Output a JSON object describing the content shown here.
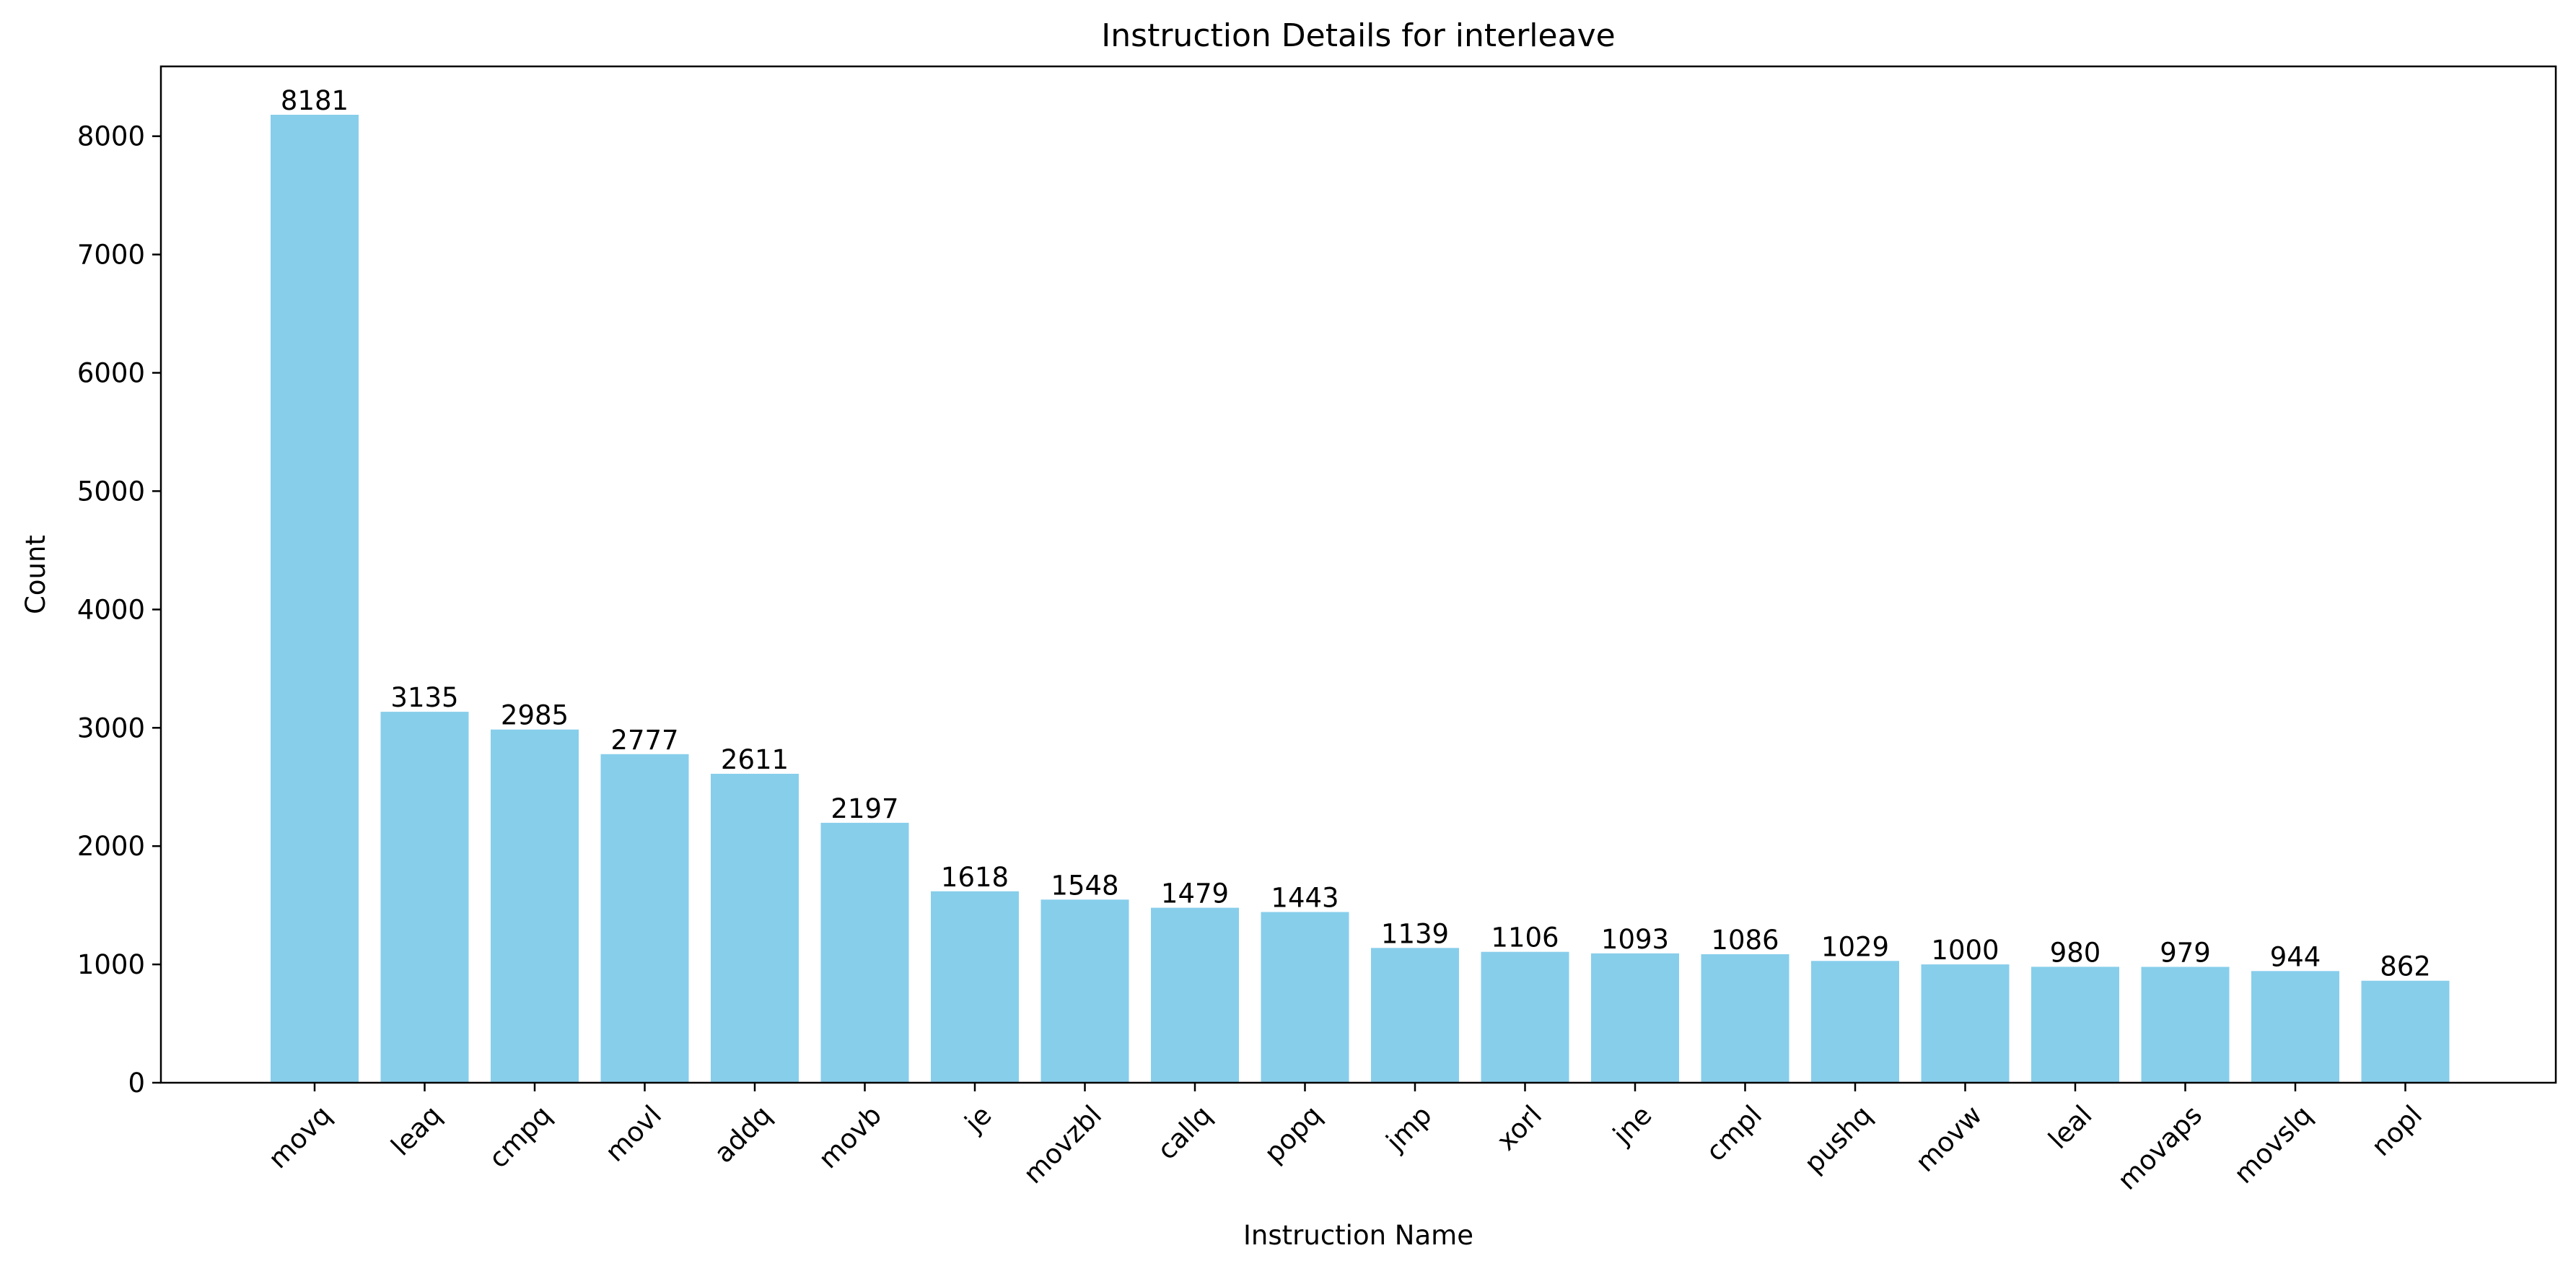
{
  "chart_data": {
    "type": "bar",
    "title": "Instruction Details for interleave",
    "xlabel": "Instruction Name",
    "ylabel": "Count",
    "categories": [
      "movq",
      "leaq",
      "cmpq",
      "movl",
      "addq",
      "movb",
      "je",
      "movzbl",
      "callq",
      "popq",
      "jmp",
      "xorl",
      "jne",
      "cmpl",
      "pushq",
      "movw",
      "leal",
      "movaps",
      "movslq",
      "nopl"
    ],
    "values": [
      8181,
      3135,
      2985,
      2777,
      2611,
      2197,
      1618,
      1548,
      1479,
      1443,
      1139,
      1106,
      1093,
      1086,
      1029,
      1000,
      980,
      979,
      944,
      862
    ],
    "ylim": [
      0,
      8590
    ],
    "yticks": [
      0,
      1000,
      2000,
      3000,
      4000,
      5000,
      6000,
      7000,
      8000
    ],
    "grid": false,
    "legend": "none",
    "bar_color": "#87ceeb",
    "xtick_rotation": 45
  }
}
